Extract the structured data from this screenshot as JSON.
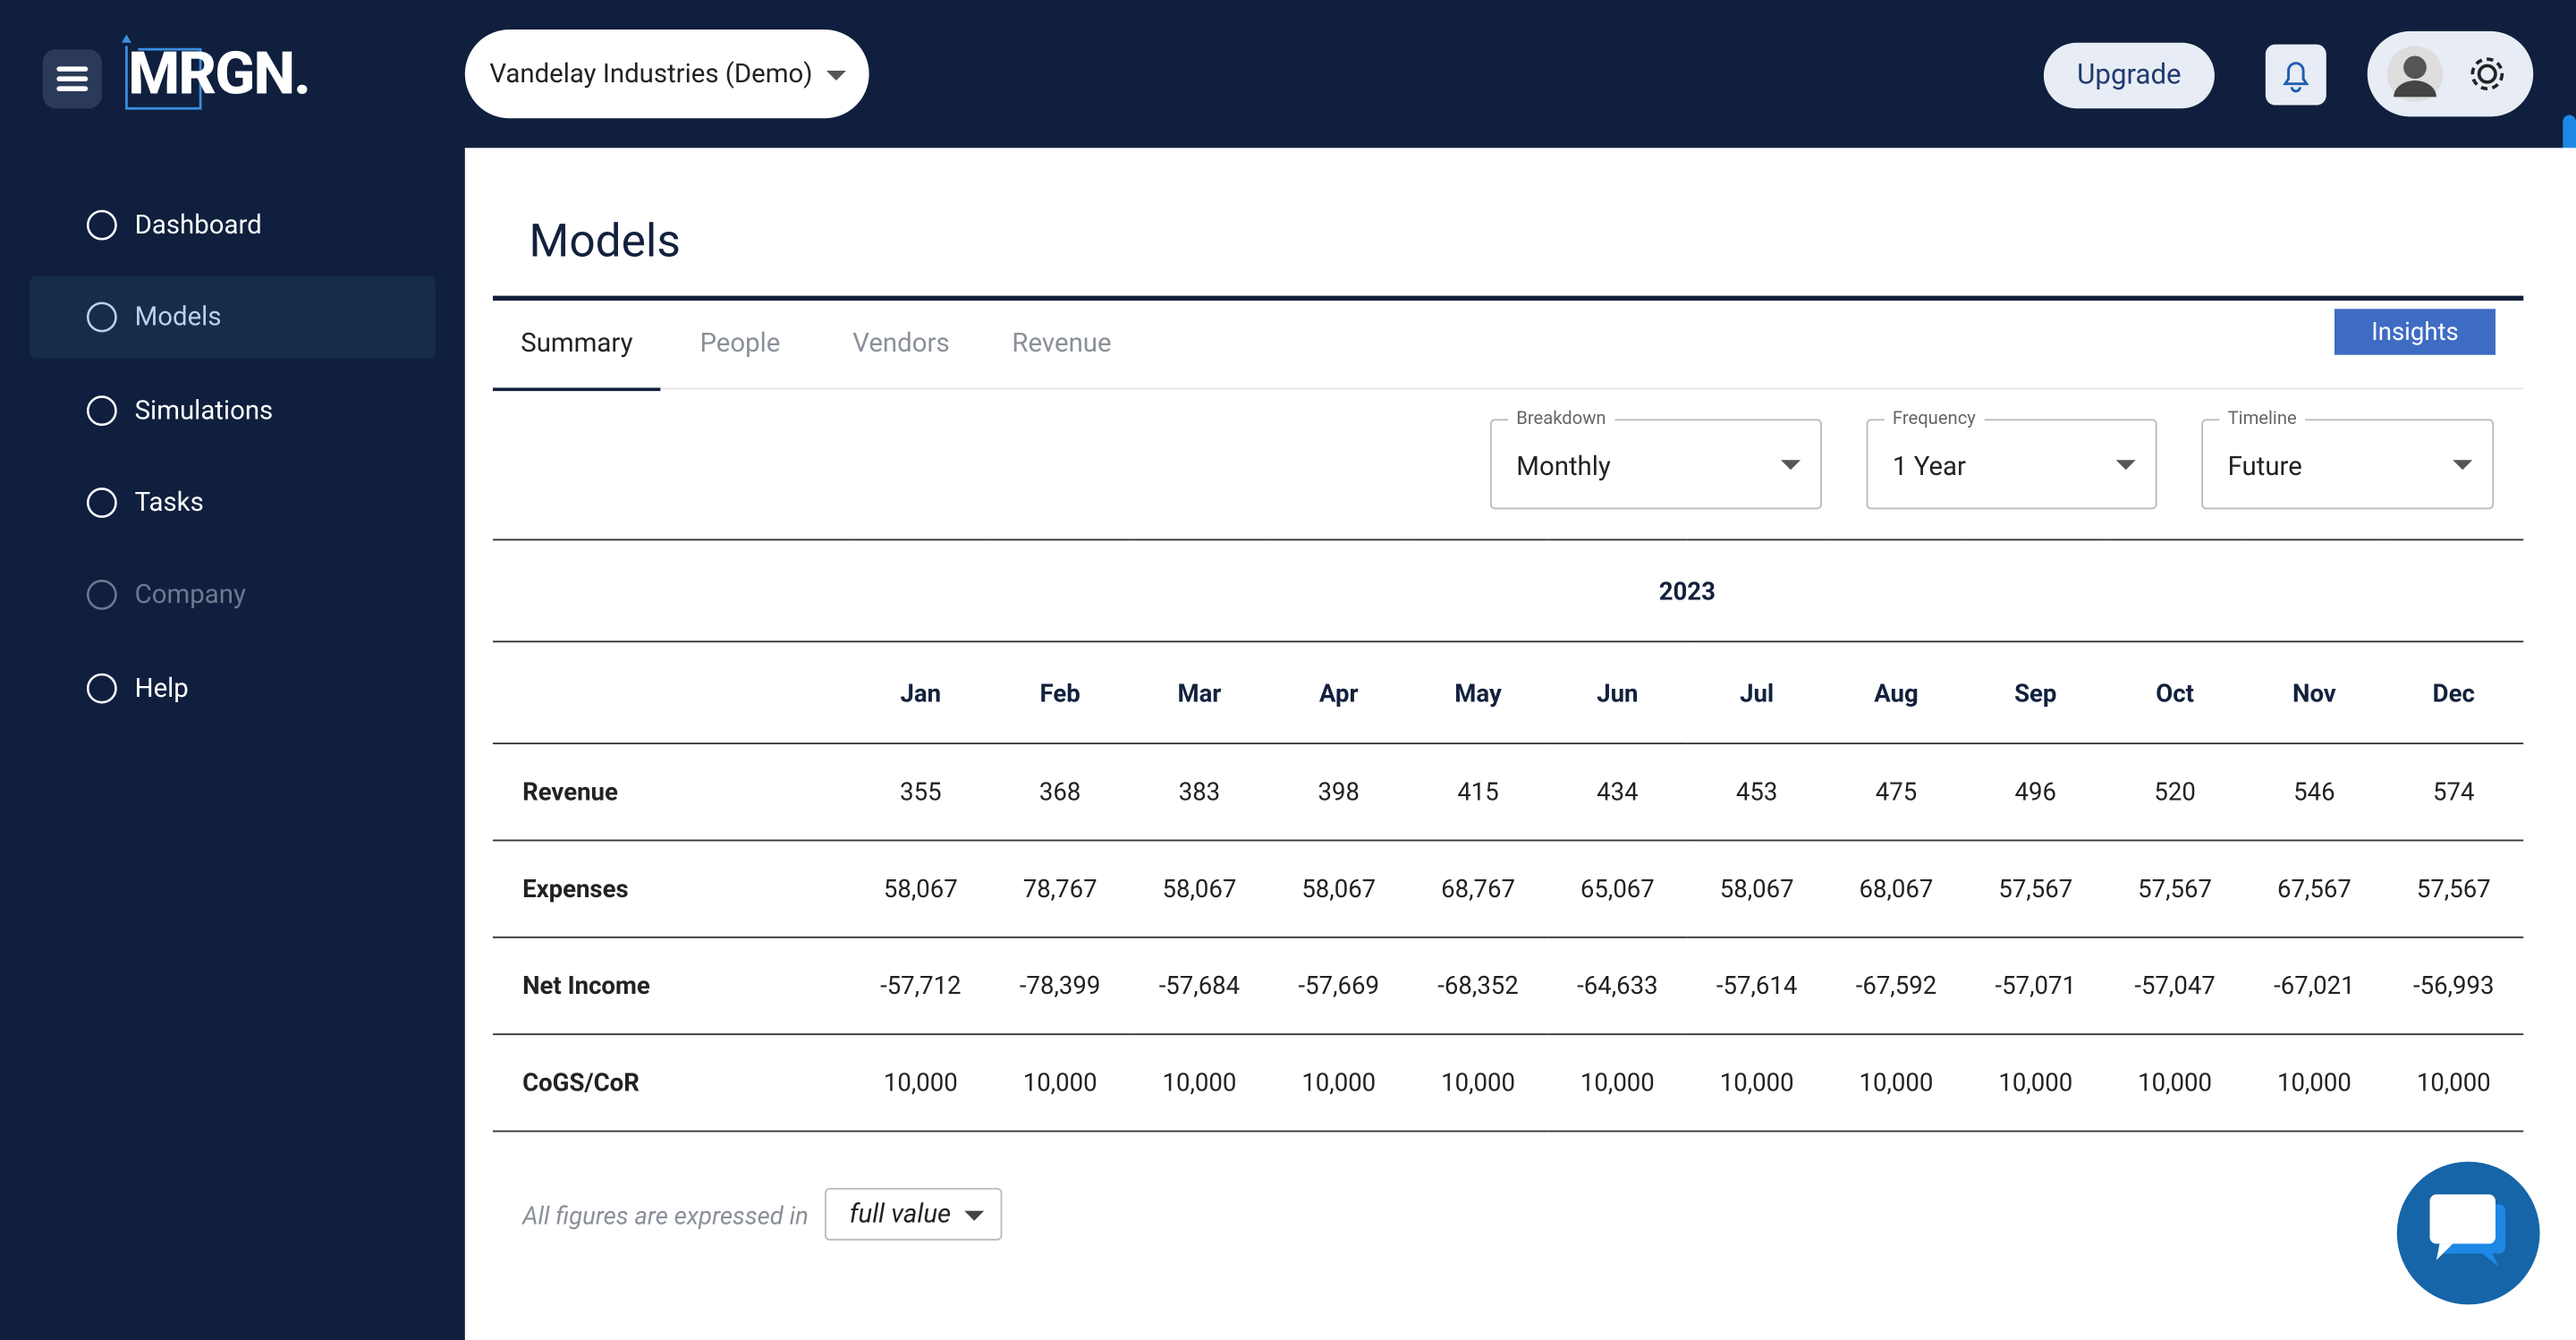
{
  "header": {
    "brand": "MRGN.",
    "company": "Vandelay Industries (Demo)",
    "upgrade": "Upgrade"
  },
  "sidebar": {
    "items": [
      "Dashboard",
      "Models",
      "Simulations",
      "Tasks",
      "Company",
      "Help"
    ],
    "active": 1,
    "disabled": [
      4
    ]
  },
  "page": {
    "title": "Models",
    "tabs": [
      "Summary",
      "People",
      "Vendors",
      "Revenue"
    ],
    "active_tab": 0,
    "insights": "Insights",
    "filters": [
      {
        "label": "Breakdown",
        "value": "Monthly"
      },
      {
        "label": "Frequency",
        "value": "1 Year"
      },
      {
        "label": "Timeline",
        "value": "Future"
      }
    ]
  },
  "table": {
    "year": "2023",
    "columns": [
      "Jan",
      "Feb",
      "Mar",
      "Apr",
      "May",
      "Jun",
      "Jul",
      "Aug",
      "Sep",
      "Oct",
      "Nov",
      "Dec"
    ],
    "rows": [
      {
        "label": "Revenue",
        "values": [
          "355",
          "368",
          "383",
          "398",
          "415",
          "434",
          "453",
          "475",
          "496",
          "520",
          "546",
          "574"
        ]
      },
      {
        "label": "Expenses",
        "values": [
          "58,067",
          "78,767",
          "58,067",
          "58,067",
          "68,767",
          "65,067",
          "58,067",
          "68,067",
          "57,567",
          "57,567",
          "67,567",
          "57,567"
        ]
      },
      {
        "label": "Net Income",
        "values": [
          "-57,712",
          "-78,399",
          "-57,684",
          "-57,669",
          "-68,352",
          "-64,633",
          "-57,614",
          "-67,592",
          "-57,071",
          "-57,047",
          "-67,021",
          "-56,993"
        ]
      },
      {
        "label": "CoGS/CoR",
        "values": [
          "10,000",
          "10,000",
          "10,000",
          "10,000",
          "10,000",
          "10,000",
          "10,000",
          "10,000",
          "10,000",
          "10,000",
          "10,000",
          "10,000"
        ]
      }
    ]
  },
  "footer": {
    "note": "All figures are expressed in",
    "unit": "full value"
  }
}
